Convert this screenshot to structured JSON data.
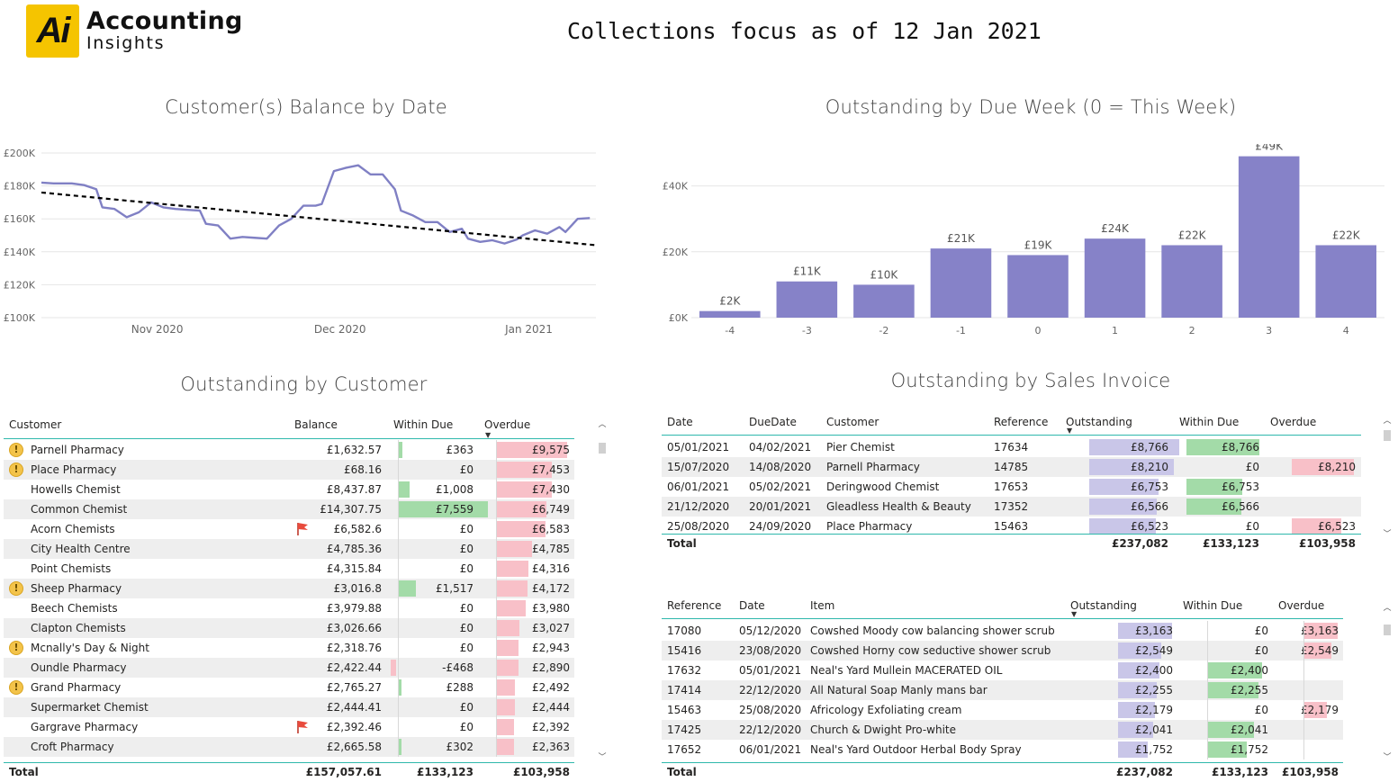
{
  "logo": {
    "mark": "Ai",
    "line1": "Accounting",
    "line2": "Insights"
  },
  "page_title": "Collections focus as of 12 Jan 2021",
  "line_chart": {
    "title": "Customer(s) Balance by Date",
    "y_ticks": [
      "£200K",
      "£180K",
      "£160K",
      "£140K",
      "£120K",
      "£100K"
    ],
    "x_ticks": [
      "Nov 2020",
      "Dec 2020",
      "Jan 2021"
    ],
    "line_color": "#8080c4",
    "trend_color": "#000000"
  },
  "chart_data": [
    {
      "type": "line",
      "title": "Customer(s) Balance by Date",
      "ylim": [
        100000,
        200000
      ],
      "x_range": [
        "2020-10-13",
        "2021-01-12"
      ],
      "series": [
        {
          "values": [
            [
              "2020-10-13",
              182000
            ],
            [
              "2020-10-15",
              181500
            ],
            [
              "2020-10-18",
              181500
            ],
            [
              "2020-10-20",
              180500
            ],
            [
              "2020-10-22",
              178000
            ],
            [
              "2020-10-23",
              167000
            ],
            [
              "2020-10-25",
              166000
            ],
            [
              "2020-10-27",
              161000
            ],
            [
              "2020-10-29",
              164000
            ],
            [
              "2020-10-31",
              170000
            ],
            [
              "2020-11-02",
              167000
            ],
            [
              "2020-11-04",
              166000
            ],
            [
              "2020-11-06",
              165500
            ],
            [
              "2020-11-08",
              165000
            ],
            [
              "2020-11-09",
              157000
            ],
            [
              "2020-11-11",
              156000
            ],
            [
              "2020-11-13",
              148000
            ],
            [
              "2020-11-15",
              149000
            ],
            [
              "2020-11-17",
              148500
            ],
            [
              "2020-11-19",
              148000
            ],
            [
              "2020-11-21",
              156000
            ],
            [
              "2020-11-23",
              160000
            ],
            [
              "2020-11-25",
              168000
            ],
            [
              "2020-11-27",
              168000
            ],
            [
              "2020-11-28",
              169000
            ],
            [
              "2020-11-30",
              189000
            ],
            [
              "2020-12-02",
              191000
            ],
            [
              "2020-12-04",
              192500
            ],
            [
              "2020-12-06",
              187000
            ],
            [
              "2020-12-08",
              187000
            ],
            [
              "2020-12-10",
              178000
            ],
            [
              "2020-12-11",
              165000
            ],
            [
              "2020-12-13",
              162000
            ],
            [
              "2020-12-15",
              158000
            ],
            [
              "2020-12-17",
              158000
            ],
            [
              "2020-12-19",
              152000
            ],
            [
              "2020-12-21",
              154000
            ],
            [
              "2020-12-22",
              148000
            ],
            [
              "2020-12-24",
              146000
            ],
            [
              "2020-12-26",
              147000
            ],
            [
              "2020-12-28",
              145000
            ],
            [
              "2020-12-30",
              147500
            ],
            [
              "2020-12-31",
              150000
            ],
            [
              "2021-01-02",
              153000
            ],
            [
              "2021-01-04",
              151000
            ],
            [
              "2021-01-06",
              155000
            ],
            [
              "2021-01-07",
              152000
            ],
            [
              "2021-01-09",
              160000
            ],
            [
              "2021-01-11",
              160500
            ]
          ]
        },
        {
          "name": "Trend",
          "values": [
            [
              "2020-10-13",
              176000
            ],
            [
              "2021-01-12",
              144000
            ]
          ]
        }
      ]
    },
    {
      "type": "bar",
      "title": "Outstanding by Due Week (0 = This Week)",
      "categories": [
        "-4",
        "-3",
        "-2",
        "-1",
        "0",
        "1",
        "2",
        "3",
        "4"
      ],
      "values": [
        2000,
        11000,
        10000,
        21000,
        19000,
        24000,
        22000,
        49000,
        22000
      ],
      "data_labels": [
        "£2K",
        "£11K",
        "£10K",
        "£21K",
        "£19K",
        "£24K",
        "£22K",
        "£49K",
        "£22K"
      ],
      "y_ticks": [
        "£40K",
        "£20K",
        "£0K"
      ],
      "ylim": [
        0,
        50000
      ],
      "bar_color": "#8682c8"
    }
  ],
  "customer_table": {
    "title": "Outstanding by Customer",
    "headers": {
      "customer": "Customer",
      "balance": "Balance",
      "within_due": "Within Due",
      "overdue": "Overdue"
    },
    "rows": [
      {
        "customer": "Parnell Pharmacy",
        "balance": "£1,632.57",
        "within_due": "£363",
        "overdue": "£9,575",
        "icon": "warn"
      },
      {
        "customer": "Place Pharmacy",
        "balance": "£68.16",
        "within_due": "£0",
        "overdue": "£7,453",
        "icon": "warn"
      },
      {
        "customer": "Howells Chemist",
        "balance": "£8,437.87",
        "within_due": "£1,008",
        "overdue": "£7,430",
        "icon": ""
      },
      {
        "customer": "Common Chemist",
        "balance": "£14,307.75",
        "within_due": "£7,559",
        "overdue": "£6,749",
        "icon": ""
      },
      {
        "customer": "Acorn Chemists",
        "balance": "£6,582.6",
        "within_due": "£0",
        "overdue": "£6,583",
        "icon": "flag"
      },
      {
        "customer": "City Health Centre",
        "balance": "£4,785.36",
        "within_due": "£0",
        "overdue": "£4,785",
        "icon": ""
      },
      {
        "customer": "Point Chemists",
        "balance": "£4,315.84",
        "within_due": "£0",
        "overdue": "£4,316",
        "icon": ""
      },
      {
        "customer": "Sheep Pharmacy",
        "balance": "£3,016.8",
        "within_due": "£1,517",
        "overdue": "£4,172",
        "icon": "warn"
      },
      {
        "customer": "Beech Chemists",
        "balance": "£3,979.88",
        "within_due": "£0",
        "overdue": "£3,980",
        "icon": ""
      },
      {
        "customer": "Clapton Chemists",
        "balance": "£3,026.66",
        "within_due": "£0",
        "overdue": "£3,027",
        "icon": ""
      },
      {
        "customer": "Mcnally's Day & Night",
        "balance": "£2,318.76",
        "within_due": "£0",
        "overdue": "£2,943",
        "icon": "warn"
      },
      {
        "customer": "Oundle Pharmacy",
        "balance": "£2,422.44",
        "within_due": "-£468",
        "overdue": "£2,890",
        "icon": ""
      },
      {
        "customer": "Grand Pharmacy",
        "balance": "£2,765.27",
        "within_due": "£288",
        "overdue": "£2,492",
        "icon": "warn"
      },
      {
        "customer": "Supermarket Chemist",
        "balance": "£2,444.41",
        "within_due": "£0",
        "overdue": "£2,444",
        "icon": ""
      },
      {
        "customer": "Gargrave Pharmacy",
        "balance": "£2,392.46",
        "within_due": "£0",
        "overdue": "£2,392",
        "icon": "flag"
      },
      {
        "customer": "Croft Pharmacy",
        "balance": "£2,665.58",
        "within_due": "£302",
        "overdue": "£2,363",
        "icon": ""
      }
    ],
    "within_due_values": [
      363,
      0,
      1008,
      7559,
      0,
      0,
      0,
      1517,
      0,
      0,
      0,
      -468,
      288,
      0,
      0,
      302
    ],
    "overdue_values": [
      9575,
      7453,
      7430,
      6749,
      6583,
      4785,
      4316,
      4172,
      3980,
      3027,
      2943,
      2890,
      2492,
      2444,
      2392,
      2363
    ],
    "total": {
      "label": "Total",
      "balance": "£157,057.61",
      "within_due": "£133,123",
      "overdue": "£103,958"
    }
  },
  "invoice_table": {
    "title": "Outstanding by Sales Invoice",
    "headers": {
      "date": "Date",
      "due_date": "DueDate",
      "customer": "Customer",
      "reference": "Reference",
      "outstanding": "Outstanding",
      "within_due": "Within Due",
      "overdue": "Overdue"
    },
    "rows": [
      {
        "date": "05/01/2021",
        "due_date": "04/02/2021",
        "customer": "Pier Chemist",
        "reference": "17634",
        "outstanding": "£8,766",
        "within_due": "£8,766",
        "overdue": ""
      },
      {
        "date": "15/07/2020",
        "due_date": "14/08/2020",
        "customer": "Parnell Pharmacy",
        "reference": "14785",
        "outstanding": "£8,210",
        "within_due": "£0",
        "overdue": "£8,210"
      },
      {
        "date": "06/01/2021",
        "due_date": "05/02/2021",
        "customer": "Deringwood Chemist",
        "reference": "17653",
        "outstanding": "£6,753",
        "within_due": "£6,753",
        "overdue": ""
      },
      {
        "date": "21/12/2020",
        "due_date": "20/01/2021",
        "customer": "Gleadless Health & Beauty",
        "reference": "17352",
        "outstanding": "£6,566",
        "within_due": "£6,566",
        "overdue": ""
      },
      {
        "date": "25/08/2020",
        "due_date": "24/09/2020",
        "customer": "Place Pharmacy",
        "reference": "15463",
        "outstanding": "£6,523",
        "within_due": "£0",
        "overdue": "£6,523"
      }
    ],
    "outstanding_values": [
      8766,
      8210,
      6753,
      6566,
      6523
    ],
    "within_due_values": [
      8766,
      0,
      6753,
      6566,
      0
    ],
    "overdue_values": [
      0,
      8210,
      0,
      0,
      6523
    ],
    "total": {
      "label": "Total",
      "outstanding": "£237,082",
      "within_due": "£133,123",
      "overdue": "£103,958"
    }
  },
  "item_table": {
    "headers": {
      "reference": "Reference",
      "date": "Date",
      "item": "Item",
      "outstanding": "Outstanding",
      "within_due": "Within Due",
      "overdue": "Overdue"
    },
    "rows": [
      {
        "reference": "17080",
        "date": "05/12/2020",
        "item": "Cowshed Moody cow balancing shower scrub",
        "outstanding": "£3,163",
        "within_due": "£0",
        "overdue": "£3,163"
      },
      {
        "reference": "15416",
        "date": "23/08/2020",
        "item": "Cowshed Horny cow seductive shower scrub",
        "outstanding": "£2,549",
        "within_due": "£0",
        "overdue": "£2,549"
      },
      {
        "reference": "17632",
        "date": "05/01/2021",
        "item": "Neal's Yard Mullein MACERATED OIL",
        "outstanding": "£2,400",
        "within_due": "£2,400",
        "overdue": ""
      },
      {
        "reference": "17414",
        "date": "22/12/2020",
        "item": "All Natural Soap Manly mans bar",
        "outstanding": "£2,255",
        "within_due": "£2,255",
        "overdue": ""
      },
      {
        "reference": "15463",
        "date": "25/08/2020",
        "item": "Africology Exfoliating cream",
        "outstanding": "£2,179",
        "within_due": "£0",
        "overdue": "£2,179"
      },
      {
        "reference": "17425",
        "date": "22/12/2020",
        "item": "Church & Dwight Pro-white",
        "outstanding": "£2,041",
        "within_due": "£2,041",
        "overdue": ""
      },
      {
        "reference": "17652",
        "date": "06/01/2021",
        "item": "Neal's Yard Outdoor Herbal Body Spray",
        "outstanding": "£1,752",
        "within_due": "£1,752",
        "overdue": ""
      }
    ],
    "outstanding_values": [
      3163,
      2549,
      2400,
      2255,
      2179,
      2041,
      1752
    ],
    "within_due_values": [
      0,
      0,
      2400,
      2255,
      0,
      2041,
      1752
    ],
    "overdue_values": [
      3163,
      2549,
      0,
      0,
      2179,
      0,
      0
    ],
    "total": {
      "label": "Total",
      "outstanding": "£237,082",
      "within_due": "£133,123",
      "overdue": "£103,958"
    }
  },
  "icons": {
    "warning": "warning-icon",
    "flag": "flag-icon",
    "sort": "sort-desc-icon",
    "scroll_up": "scroll-up-icon",
    "scroll_down": "scroll-down-icon"
  },
  "glyphs": {
    "warn": "!",
    "sort": "▼",
    "up": "︿",
    "down": "﹀"
  }
}
